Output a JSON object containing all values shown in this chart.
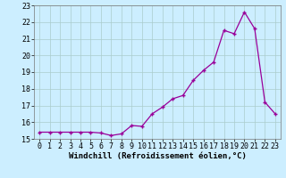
{
  "x": [
    0,
    1,
    2,
    3,
    4,
    5,
    6,
    7,
    8,
    9,
    10,
    11,
    12,
    13,
    14,
    15,
    16,
    17,
    18,
    19,
    20,
    21,
    22,
    23
  ],
  "y": [
    15.4,
    15.4,
    15.4,
    15.4,
    15.4,
    15.4,
    15.35,
    15.2,
    15.3,
    15.8,
    15.75,
    16.5,
    16.9,
    17.4,
    17.6,
    18.5,
    19.1,
    19.6,
    21.5,
    21.3,
    22.6,
    21.6,
    17.2,
    16.5
  ],
  "line_color": "#990099",
  "marker_color": "#990099",
  "bg_color": "#cceeff",
  "grid_color": "#aacccc",
  "xlabel": "Windchill (Refroidissement éolien,°C)",
  "ylim_min": 15,
  "ylim_max": 23,
  "xlim_min": -0.5,
  "xlim_max": 23.5,
  "yticks": [
    15,
    16,
    17,
    18,
    19,
    20,
    21,
    22,
    23
  ],
  "xticks": [
    0,
    1,
    2,
    3,
    4,
    5,
    6,
    7,
    8,
    9,
    10,
    11,
    12,
    13,
    14,
    15,
    16,
    17,
    18,
    19,
    20,
    21,
    22,
    23
  ],
  "tick_fontsize": 6,
  "xlabel_fontsize": 6.5
}
